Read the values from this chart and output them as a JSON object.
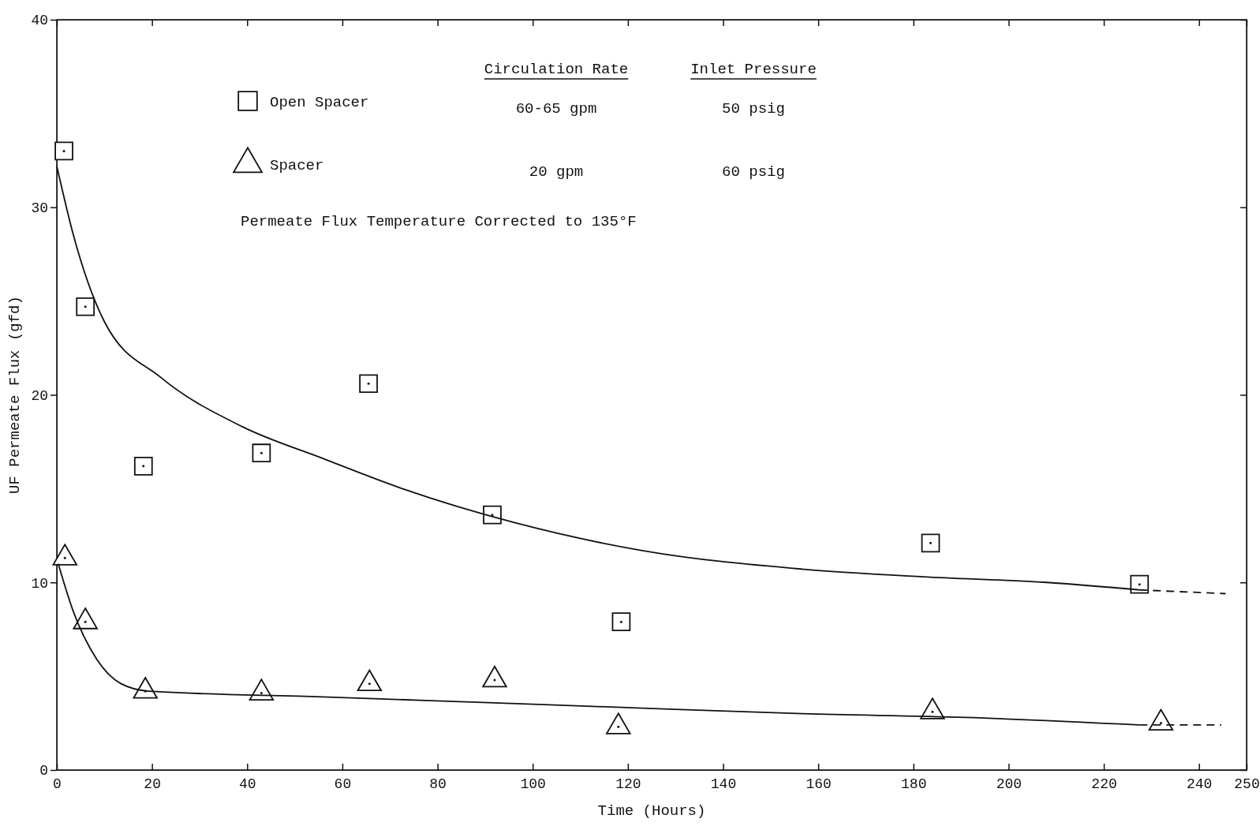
{
  "chart_data": {
    "type": "scatter",
    "xlabel": "Time (Hours)",
    "ylabel": "UF Permeate Flux (gfd)",
    "xlim": [
      0,
      250
    ],
    "xticks": [
      0,
      20,
      40,
      60,
      80,
      100,
      120,
      140,
      160,
      180,
      200,
      220,
      240,
      250
    ],
    "ylim": [
      0,
      40
    ],
    "yticks": [
      0,
      10,
      20,
      30,
      40
    ],
    "grid": false,
    "legend": "top",
    "annotations": [
      "Circulation Rate",
      "Inlet Pressure",
      "60-65 gpm",
      "50 psig",
      "20 gpm",
      "60 psig",
      "Permeate Flux Temperature Corrected to 135°F"
    ],
    "series": [
      {
        "name": "Open Spacer",
        "marker": "square",
        "color": "#111111",
        "x": [
          1.5,
          6,
          18.2,
          43,
          65.5,
          91.5,
          118.6,
          183.6,
          227.5
        ],
        "values": [
          33.0,
          24.7,
          16.2,
          16.9,
          20.6,
          13.6,
          7.9,
          12.1,
          9.9
        ]
      },
      {
        "name": "Spacer",
        "marker": "triangle",
        "color": "#111111",
        "x": [
          1.7,
          6,
          18.6,
          43,
          65.7,
          92,
          118,
          184,
          232
        ],
        "values": [
          11.3,
          7.9,
          4.2,
          4.1,
          4.6,
          4.8,
          2.3,
          3.1,
          2.5
        ]
      },
      {
        "type": "line",
        "marker": "none",
        "line_style": "solid",
        "color": "#111111",
        "x": [
          0,
          3.4,
          10,
          22,
          39,
          56,
          72.6,
          96,
          123,
          157,
          182,
          208,
          227.5
        ],
        "values": [
          32.2,
          28.6,
          23.9,
          20.9,
          18.3,
          16.6,
          15.0,
          13.2,
          11.7,
          10.7,
          10.3,
          10.0,
          9.6
        ]
      },
      {
        "type": "line",
        "marker": "none",
        "line_style": "dashed",
        "color": "#111111",
        "x": [
          227.5,
          245.6
        ],
        "values": [
          9.6,
          9.4
        ]
      },
      {
        "type": "line",
        "marker": "none",
        "line_style": "solid",
        "color": "#111111",
        "x": [
          0.3,
          3.4,
          8.4,
          13.5,
          19.4,
          56,
          89.5,
          123,
          157,
          191,
          227.5
        ],
        "values": [
          11.0,
          8.5,
          5.9,
          4.6,
          4.2,
          3.9,
          3.6,
          3.3,
          3.0,
          2.8,
          2.4
        ]
      },
      {
        "type": "line",
        "marker": "none",
        "line_style": "dashed",
        "color": "#111111",
        "x": [
          227.5,
          244.7
        ],
        "values": [
          2.4,
          2.4
        ]
      }
    ]
  }
}
